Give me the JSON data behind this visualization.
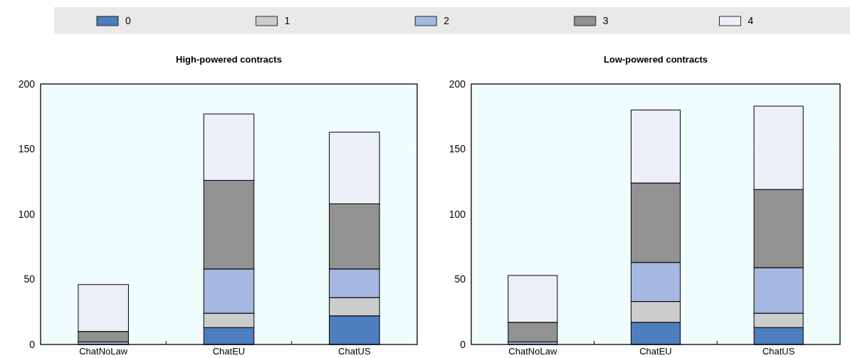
{
  "chart_data": [
    {
      "type": "bar",
      "title": "High-powered contracts",
      "categories": [
        "ChatNoLaw",
        "ChatEU",
        "ChatUS"
      ],
      "stacked": true,
      "ylim": [
        0,
        200
      ],
      "yticks": [
        0,
        50,
        100,
        150,
        200
      ],
      "grid": "y",
      "legend": "top",
      "series": [
        {
          "name": "0",
          "color": "#4d7ebf",
          "values": [
            0,
            13,
            22
          ]
        },
        {
          "name": "1",
          "color": "#cccccc",
          "values": [
            0,
            11,
            14
          ]
        },
        {
          "name": "2",
          "color": "#a6b8e2",
          "values": [
            2,
            34,
            22
          ]
        },
        {
          "name": "3",
          "color": "#929292",
          "values": [
            8,
            68,
            50
          ]
        },
        {
          "name": "4",
          "color": "#eceff8",
          "values": [
            36,
            51,
            55
          ]
        }
      ]
    },
    {
      "type": "bar",
      "title": "Low-powered contracts",
      "categories": [
        "ChatNoLaw",
        "ChatEU",
        "ChatUS"
      ],
      "stacked": true,
      "ylim": [
        0,
        200
      ],
      "yticks": [
        0,
        50,
        100,
        150,
        200
      ],
      "grid": "y",
      "series": [
        {
          "color": "#4d7ebf",
          "values": [
            0,
            17,
            13
          ]
        },
        {
          "color": "#cccccc",
          "values": [
            0,
            16,
            11
          ]
        },
        {
          "color": "#a6b8e2",
          "values": [
            2,
            30,
            35
          ]
        },
        {
          "color": "#929292",
          "values": [
            15,
            61,
            60
          ]
        },
        {
          "color": "#eceff8",
          "values": [
            36,
            56,
            64
          ]
        }
      ]
    }
  ]
}
